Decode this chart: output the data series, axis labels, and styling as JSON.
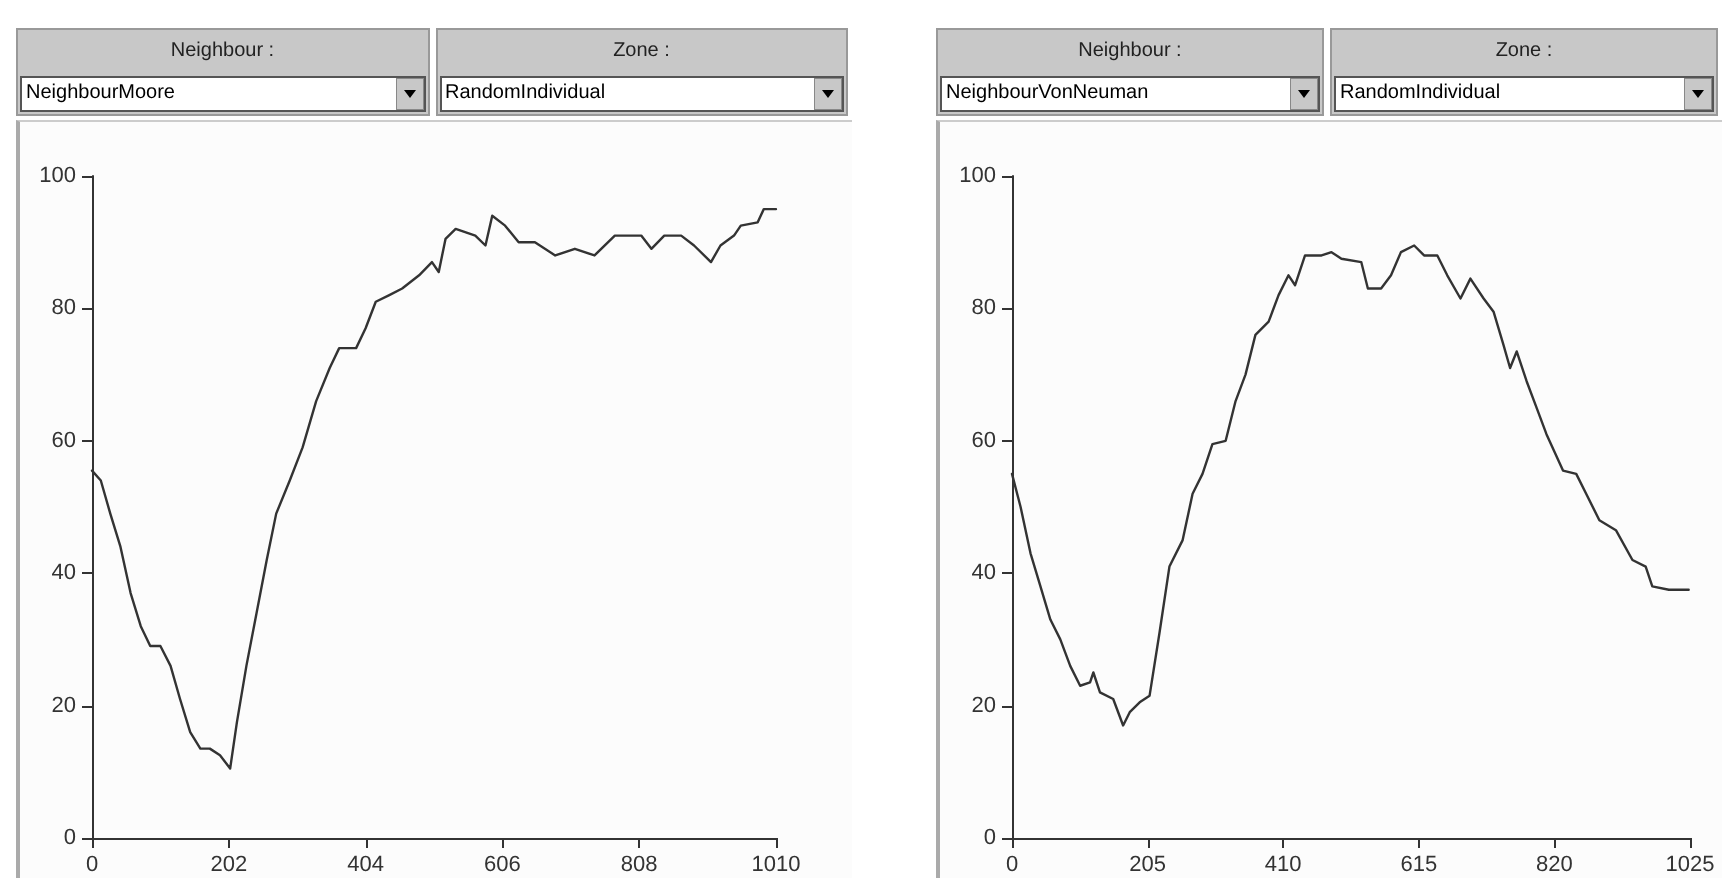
{
  "chart_data": [
    {
      "type": "line",
      "annotations": [
        "Neighbour :",
        "NeighbourMoore",
        "Zone :",
        "RandomIndividual"
      ],
      "xlim": [
        0,
        1010
      ],
      "xticks": [
        0,
        202,
        404,
        606,
        808,
        1010
      ],
      "ylim": [
        0,
        100
      ],
      "yticks": [
        0,
        20,
        40,
        60,
        80,
        100
      ],
      "marker": "none",
      "line_style": "solid",
      "series": [
        {
          "color": "#333333",
          "x": [
            0,
            13,
            27,
            42,
            57,
            72,
            86,
            101,
            116,
            130,
            145,
            160,
            174,
            189,
            204,
            214,
            228,
            243,
            258,
            272,
            292,
            311,
            331,
            351,
            365,
            390,
            404,
            419,
            439,
            458,
            483,
            502,
            512,
            522,
            537,
            566,
            581,
            591,
            610,
            630,
            654,
            684,
            713,
            742,
            772,
            811,
            826,
            845,
            870,
            889,
            914,
            928,
            948,
            958,
            983,
            992,
            1010
          ],
          "values": [
            55.5,
            54,
            49,
            44,
            37,
            32,
            29,
            29,
            26,
            21,
            16,
            13.5,
            13.5,
            12.5,
            10.5,
            17.5,
            26,
            34,
            42,
            49,
            54,
            59,
            66,
            71,
            74,
            74,
            77,
            81,
            82,
            83,
            85,
            87,
            85.5,
            90.5,
            92,
            91,
            89.5,
            94,
            92.5,
            90,
            90,
            88,
            89,
            88,
            91,
            91,
            89,
            91,
            91,
            89.5,
            87,
            89.5,
            91,
            92.5,
            93,
            95,
            95
          ]
        }
      ]
    },
    {
      "type": "line",
      "annotations": [
        "Neighbour :",
        "NeighbourVonNeuman",
        "Zone :",
        "RandomIndividual"
      ],
      "xlim": [
        0,
        1025
      ],
      "xticks": [
        0,
        205,
        410,
        615,
        820,
        1025
      ],
      "ylim": [
        0,
        100
      ],
      "yticks": [
        0,
        20,
        40,
        60,
        80,
        100
      ],
      "marker": "none",
      "line_style": "solid",
      "series": [
        {
          "color": "#333333",
          "x": [
            0,
            13,
            28,
            43,
            58,
            73,
            88,
            103,
            118,
            123,
            133,
            153,
            168,
            178,
            193,
            208,
            223,
            238,
            258,
            273,
            288,
            303,
            323,
            338,
            353,
            368,
            388,
            403,
            418,
            428,
            443,
            468,
            483,
            498,
            528,
            538,
            558,
            573,
            588,
            608,
            623,
            643,
            658,
            678,
            693,
            713,
            728,
            743,
            753,
            763,
            778,
            793,
            808,
            833,
            853,
            868,
            888,
            913,
            938,
            958,
            968,
            993,
            1023
          ],
          "values": [
            55,
            50,
            43,
            38,
            33,
            30,
            26,
            23,
            23.5,
            25,
            22,
            21,
            17,
            19,
            20.5,
            21.5,
            31,
            41,
            45,
            52,
            55,
            59.5,
            60,
            66,
            70,
            76,
            78,
            82,
            85,
            83.5,
            88,
            88,
            88.5,
            87.5,
            87,
            83,
            83,
            85,
            88.5,
            89.5,
            88,
            88,
            85,
            81.5,
            84.5,
            81.5,
            79.5,
            74.5,
            71,
            73.5,
            69,
            65,
            61,
            55.5,
            55,
            52,
            48,
            46.5,
            42,
            41,
            38,
            37.5,
            37.5
          ]
        }
      ]
    }
  ]
}
